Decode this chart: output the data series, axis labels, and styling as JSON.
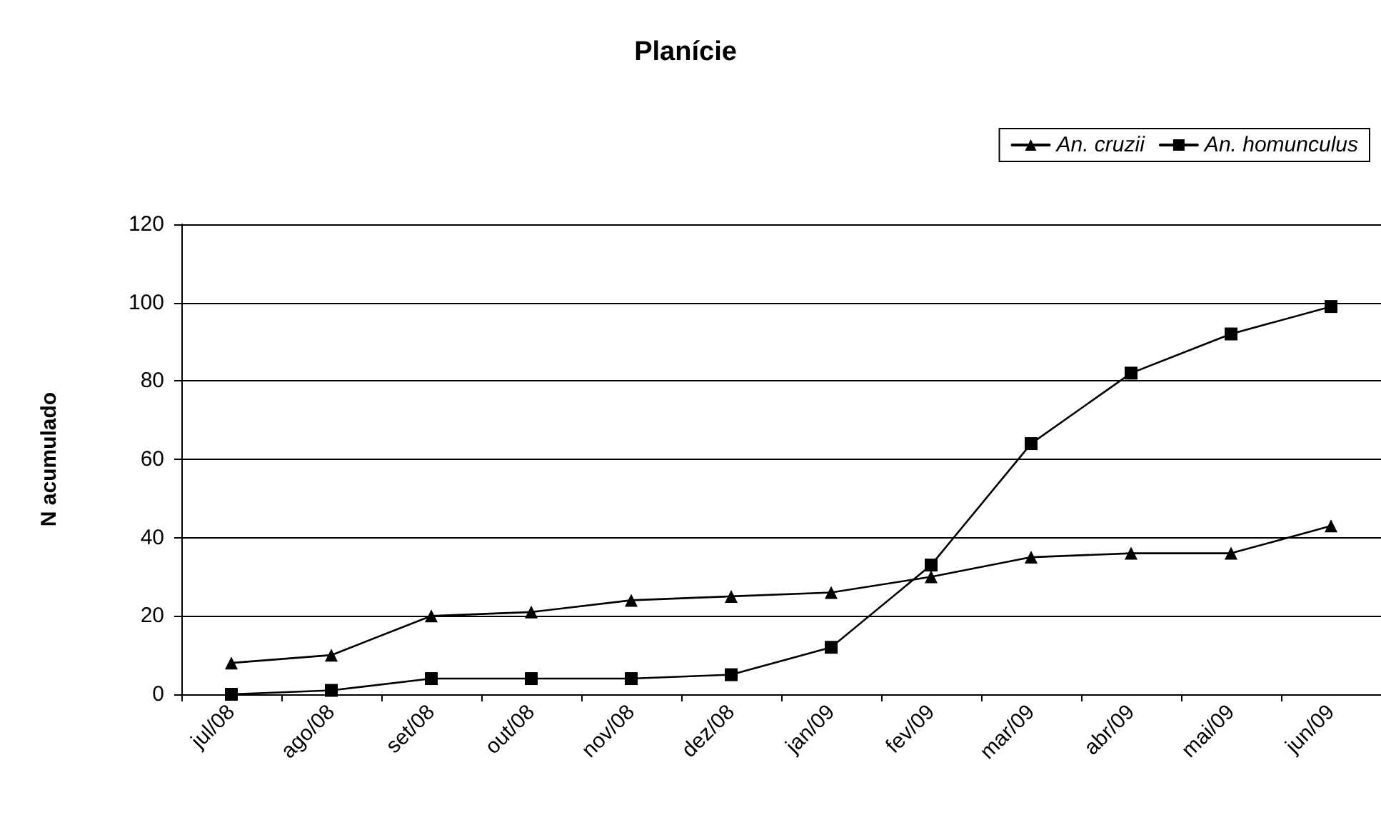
{
  "chart_data": {
    "type": "line",
    "title": "Planície",
    "ylabel": "N acumulado",
    "categories": [
      "jul/08",
      "ago/08",
      "set/08",
      "out/08",
      "nov/08",
      "dez/08",
      "jan/09",
      "fev/09",
      "mar/09",
      "abr/09",
      "mai/09",
      "jun/09"
    ],
    "series": [
      {
        "name": "An. cruzii",
        "color": "#000000",
        "marker": "triangle",
        "values": [
          8,
          10,
          20,
          21,
          24,
          25,
          26,
          30,
          35,
          36,
          36,
          43
        ]
      },
      {
        "name": "An. homunculus",
        "color": "#000000",
        "marker": "square",
        "values": [
          0,
          1,
          4,
          4,
          4,
          5,
          12,
          33,
          64,
          82,
          92,
          99
        ]
      }
    ],
    "ylim": [
      0,
      120
    ],
    "yticks": [
      0,
      20,
      40,
      60,
      80,
      100,
      120
    ],
    "grid": "y",
    "legend": "top right",
    "line_style": "solid"
  }
}
